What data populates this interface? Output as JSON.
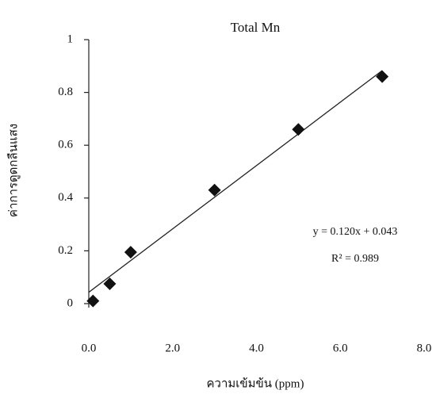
{
  "chart_data": {
    "type": "scatter",
    "title": "Total Mn",
    "x_label": "ความเข้มข้น (ppm)",
    "y_label": "ค่าการดูดกลืนแสง",
    "x": [
      0.1,
      0.5,
      1.0,
      3.0,
      5.0,
      7.0
    ],
    "values": [
      0.01,
      0.075,
      0.195,
      0.43,
      0.66,
      0.86
    ],
    "color": "#111111",
    "marker": "diamond",
    "xlim": [
      0,
      8
    ],
    "ylim": [
      0,
      1
    ],
    "xticks": [
      {
        "value": 0,
        "label": "0.0"
      },
      {
        "value": 2,
        "label": "2.0"
      },
      {
        "value": 4,
        "label": "4.0"
      },
      {
        "value": 6,
        "label": "6.0"
      },
      {
        "value": 8,
        "label": "8.0"
      }
    ],
    "yticks": [
      0,
      0.2,
      0.4,
      0.6,
      0.8,
      1
    ],
    "grid": false,
    "trendline": {
      "equation": "y = 0.120x + 0.043",
      "r_squared": "R² = 0.989",
      "slope": 0.12,
      "intercept": 0.043,
      "x_range": [
        0,
        7
      ]
    }
  }
}
